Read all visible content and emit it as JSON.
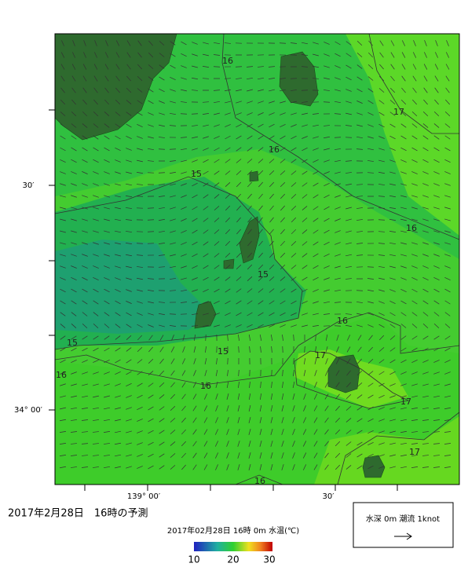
{
  "header": {
    "title": "2017年2月28日　16時の予測"
  },
  "map": {
    "lat_labels": [
      "30′",
      "34° 00′"
    ],
    "lon_labels": [
      "139° 00′",
      "30′"
    ],
    "contour_labels": [
      "16",
      "17",
      "16",
      "15",
      "16",
      "15",
      "16",
      "15",
      "15",
      "17",
      "16",
      "16",
      "17",
      "17",
      "16"
    ]
  },
  "colorbar": {
    "caption": "2017年02月28日 16時 0m 水温(℃)",
    "ticks": [
      "10",
      "20",
      "30"
    ]
  },
  "legend": {
    "text": "水深 0m  潮流 1knot"
  }
}
